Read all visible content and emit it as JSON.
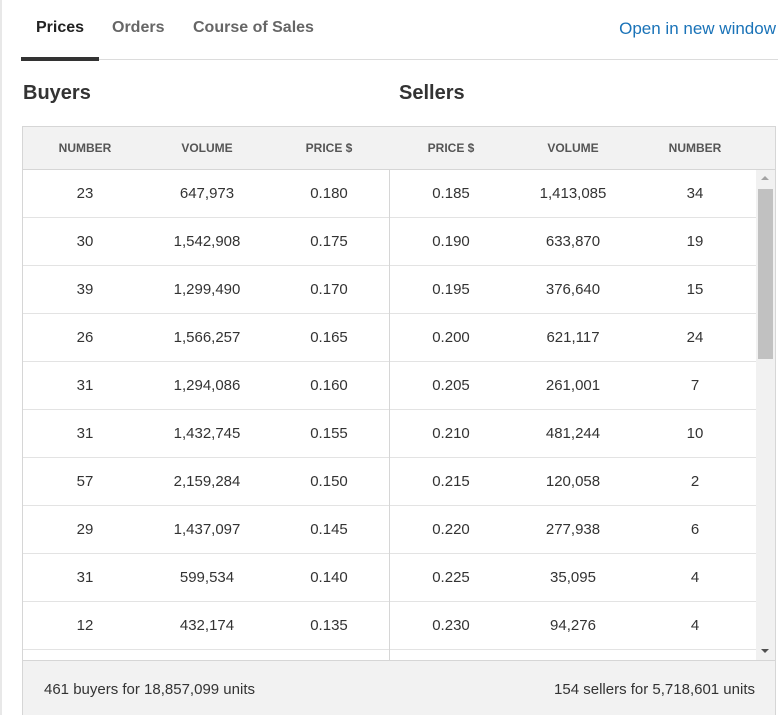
{
  "tabs": [
    "Prices",
    "Orders",
    "Course of Sales"
  ],
  "active_tab": "Prices",
  "open_link": "Open in new window",
  "buyers_heading": "Buyers",
  "sellers_heading": "Sellers",
  "columns": [
    "NUMBER",
    "VOLUME",
    "PRICE $",
    "PRICE $",
    "VOLUME",
    "NUMBER"
  ],
  "rows": [
    [
      "23",
      "647,973",
      "0.180",
      "0.185",
      "1,413,085",
      "34"
    ],
    [
      "30",
      "1,542,908",
      "0.175",
      "0.190",
      "633,870",
      "19"
    ],
    [
      "39",
      "1,299,490",
      "0.170",
      "0.195",
      "376,640",
      "15"
    ],
    [
      "26",
      "1,566,257",
      "0.165",
      "0.200",
      "621,117",
      "24"
    ],
    [
      "31",
      "1,294,086",
      "0.160",
      "0.205",
      "261,001",
      "7"
    ],
    [
      "31",
      "1,432,745",
      "0.155",
      "0.210",
      "481,244",
      "10"
    ],
    [
      "57",
      "2,159,284",
      "0.150",
      "0.215",
      "120,058",
      "2"
    ],
    [
      "29",
      "1,437,097",
      "0.145",
      "0.220",
      "277,938",
      "6"
    ],
    [
      "31",
      "599,534",
      "0.140",
      "0.225",
      "35,095",
      "4"
    ],
    [
      "12",
      "432,174",
      "0.135",
      "0.230",
      "94,276",
      "4"
    ]
  ],
  "footer": {
    "buyers_summary": "461 buyers for 18,857,099 units",
    "sellers_summary": "154 sellers for 5,718,601 units"
  },
  "colors": {
    "link": "#1a73b8",
    "header_bg": "#f2f2f2",
    "active_tab_underline": "#333333"
  }
}
